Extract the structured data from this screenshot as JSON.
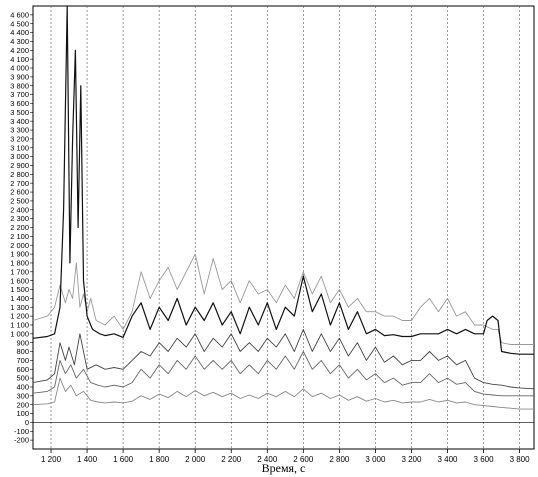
{
  "chart_data": {
    "type": "line",
    "title": "",
    "xlabel": "Время, с",
    "ylabel": "",
    "xlim": [
      1100,
      3880
    ],
    "ylim": [
      -300,
      4700
    ],
    "grid": {
      "x": true,
      "y": false
    },
    "legend": "none",
    "x_ticks": [
      1200,
      1400,
      1600,
      1800,
      2000,
      2200,
      2400,
      2600,
      2800,
      3000,
      3200,
      3400,
      3600,
      3800
    ],
    "x_tick_labels": [
      "1 200",
      "1 400",
      "1 600",
      "1 800",
      "2 000",
      "2 200",
      "2 400",
      "2 600",
      "2 800",
      "3 000",
      "3 200",
      "3 400",
      "3 600",
      "3 800"
    ],
    "y_ticks": [
      -200,
      -100,
      0,
      100,
      200,
      300,
      400,
      500,
      600,
      700,
      800,
      900,
      1000,
      1100,
      1200,
      1300,
      1400,
      1500,
      1600,
      1700,
      1800,
      1900,
      2000,
      2100,
      2200,
      2300,
      2400,
      2500,
      2600,
      2700,
      2800,
      2900,
      3000,
      3100,
      3200,
      3300,
      3400,
      3500,
      3600,
      3700,
      3800,
      3900,
      4000,
      4100,
      4200,
      4300,
      4400,
      4500,
      4600
    ],
    "y_tick_labels": [
      "-200",
      "-100",
      "0",
      "100",
      "200",
      "300",
      "400",
      "500",
      "600",
      "700",
      "800",
      "900",
      "1 000",
      "1 100",
      "1 200",
      "1 300",
      "1 400",
      "1 500",
      "1 600",
      "1 700",
      "1 800",
      "1 900",
      "2 000",
      "2 100",
      "2 200",
      "2 300",
      "2 400",
      "2 500",
      "2 600",
      "2 700",
      "2 800",
      "2 900",
      "3 000",
      "3 100",
      "3 200",
      "3 300",
      "3 400",
      "3 500",
      "3 600",
      "3 700",
      "3 800",
      "3 900",
      "4 000",
      "4 100",
      "4 200",
      "4 300",
      "4 400",
      "4 500",
      "4 600"
    ],
    "series": [
      {
        "color": "#999999",
        "x": [
          1100,
          1180,
          1220,
          1250,
          1280,
          1300,
          1320,
          1340,
          1360,
          1380,
          1400,
          1420,
          1450,
          1500,
          1550,
          1600,
          1650,
          1700,
          1750,
          1800,
          1850,
          1900,
          1950,
          2000,
          2050,
          2100,
          2150,
          2200,
          2250,
          2300,
          2350,
          2400,
          2450,
          2500,
          2550,
          2600,
          2650,
          2700,
          2750,
          2800,
          2850,
          2900,
          2950,
          3000,
          3050,
          3100,
          3150,
          3200,
          3250,
          3300,
          3350,
          3400,
          3450,
          3500,
          3550,
          3600,
          3650,
          3680,
          3700,
          3750,
          3800,
          3880
        ],
        "y": [
          1150,
          1200,
          1300,
          1550,
          1350,
          1500,
          1400,
          1800,
          1300,
          1450,
          1250,
          1400,
          1150,
          1100,
          1200,
          1050,
          1250,
          1700,
          1400,
          1600,
          1750,
          1500,
          1700,
          1900,
          1450,
          1850,
          1500,
          1600,
          1350,
          1600,
          1450,
          1500,
          1350,
          1550,
          1400,
          1700,
          1450,
          1650,
          1350,
          1500,
          1300,
          1400,
          1250,
          1250,
          1200,
          1200,
          1150,
          1150,
          1300,
          1400,
          1250,
          1400,
          1200,
          1250,
          1100,
          1100,
          1050,
          1050,
          900,
          880,
          880,
          880
        ]
      },
      {
        "color": "#111111",
        "x": [
          1100,
          1180,
          1220,
          1250,
          1270,
          1290,
          1305,
          1320,
          1335,
          1350,
          1365,
          1380,
          1400,
          1430,
          1470,
          1500,
          1550,
          1600,
          1650,
          1700,
          1750,
          1800,
          1850,
          1900,
          1950,
          2000,
          2050,
          2100,
          2150,
          2200,
          2250,
          2300,
          2350,
          2400,
          2450,
          2500,
          2550,
          2600,
          2650,
          2700,
          2750,
          2800,
          2850,
          2900,
          2950,
          3000,
          3050,
          3100,
          3150,
          3200,
          3250,
          3300,
          3350,
          3400,
          3450,
          3500,
          3550,
          3600,
          3620,
          3650,
          3680,
          3700,
          3750,
          3800,
          3880
        ],
        "y": [
          950,
          970,
          1000,
          1300,
          2400,
          4700,
          1800,
          3200,
          4200,
          2200,
          3800,
          1600,
          1200,
          1050,
          1000,
          980,
          1000,
          960,
          1200,
          1350,
          1050,
          1300,
          1150,
          1400,
          1100,
          1300,
          1150,
          1350,
          1100,
          1250,
          1000,
          1300,
          1100,
          1350,
          1050,
          1300,
          1200,
          1650,
          1250,
          1450,
          1100,
          1350,
          1050,
          1250,
          1000,
          1050,
          980,
          990,
          970,
          970,
          1000,
          1000,
          1000,
          1050,
          1000,
          1050,
          1000,
          1000,
          1150,
          1200,
          1150,
          800,
          780,
          770,
          770
        ]
      },
      {
        "color": "#444444",
        "x": [
          1100,
          1180,
          1220,
          1250,
          1280,
          1300,
          1330,
          1360,
          1400,
          1450,
          1500,
          1550,
          1600,
          1650,
          1700,
          1750,
          1800,
          1850,
          1900,
          1950,
          2000,
          2050,
          2100,
          2150,
          2200,
          2250,
          2300,
          2350,
          2400,
          2450,
          2500,
          2550,
          2600,
          2650,
          2700,
          2750,
          2800,
          2850,
          2900,
          2950,
          3000,
          3050,
          3100,
          3150,
          3200,
          3250,
          3300,
          3350,
          3400,
          3450,
          3500,
          3550,
          3600,
          3650,
          3700,
          3750,
          3800,
          3880
        ],
        "y": [
          450,
          480,
          550,
          900,
          700,
          850,
          650,
          1000,
          600,
          650,
          600,
          620,
          600,
          700,
          800,
          750,
          900,
          800,
          950,
          850,
          1000,
          800,
          950,
          850,
          1000,
          800,
          900,
          800,
          950,
          850,
          1000,
          800,
          1050,
          800,
          1000,
          800,
          950,
          750,
          900,
          700,
          850,
          680,
          750,
          650,
          700,
          700,
          800,
          700,
          750,
          650,
          700,
          500,
          450,
          430,
          420,
          400,
          390,
          380
        ]
      },
      {
        "color": "#666666",
        "x": [
          1100,
          1180,
          1220,
          1250,
          1280,
          1310,
          1340,
          1380,
          1420,
          1460,
          1500,
          1550,
          1600,
          1650,
          1700,
          1750,
          1800,
          1850,
          1900,
          1950,
          2000,
          2050,
          2100,
          2150,
          2200,
          2250,
          2300,
          2350,
          2400,
          2450,
          2500,
          2550,
          2600,
          2650,
          2700,
          2750,
          2800,
          2850,
          2900,
          2950,
          3000,
          3050,
          3100,
          3150,
          3200,
          3250,
          3300,
          3350,
          3400,
          3450,
          3500,
          3550,
          3600,
          3650,
          3700,
          3750,
          3800,
          3880
        ],
        "y": [
          330,
          350,
          400,
          700,
          550,
          650,
          500,
          600,
          450,
          420,
          400,
          420,
          400,
          450,
          600,
          500,
          650,
          550,
          700,
          600,
          750,
          600,
          700,
          600,
          700,
          550,
          650,
          550,
          700,
          600,
          750,
          600,
          800,
          600,
          700,
          550,
          650,
          500,
          600,
          480,
          550,
          450,
          500,
          420,
          450,
          450,
          550,
          450,
          500,
          430,
          450,
          350,
          320,
          310,
          300,
          300,
          300,
          300
        ]
      },
      {
        "color": "#888888",
        "x": [
          1100,
          1180,
          1220,
          1250,
          1280,
          1310,
          1340,
          1380,
          1420,
          1460,
          1500,
          1550,
          1600,
          1650,
          1700,
          1750,
          1800,
          1850,
          1900,
          1950,
          2000,
          2050,
          2100,
          2150,
          2200,
          2250,
          2300,
          2350,
          2400,
          2450,
          2500,
          2550,
          2600,
          2650,
          2700,
          2750,
          2800,
          2850,
          2900,
          2950,
          3000,
          3050,
          3100,
          3150,
          3200,
          3250,
          3300,
          3350,
          3400,
          3450,
          3500,
          3550,
          3600,
          3650,
          3700,
          3750,
          3800,
          3880
        ],
        "y": [
          200,
          210,
          230,
          500,
          350,
          420,
          300,
          350,
          250,
          230,
          220,
          230,
          220,
          240,
          300,
          260,
          320,
          280,
          350,
          290,
          360,
          300,
          340,
          290,
          330,
          270,
          310,
          270,
          330,
          290,
          350,
          290,
          380,
          290,
          330,
          270,
          310,
          250,
          290,
          240,
          270,
          230,
          250,
          220,
          230,
          230,
          260,
          230,
          250,
          220,
          230,
          200,
          190,
          180,
          170,
          160,
          150,
          150
        ]
      }
    ]
  }
}
